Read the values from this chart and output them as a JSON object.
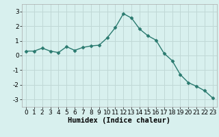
{
  "x": [
    0,
    1,
    2,
    3,
    4,
    5,
    6,
    7,
    8,
    9,
    10,
    11,
    12,
    13,
    14,
    15,
    16,
    17,
    18,
    19,
    20,
    21,
    22,
    23
  ],
  "y": [
    0.3,
    0.3,
    0.5,
    0.3,
    0.2,
    0.6,
    0.35,
    0.55,
    0.65,
    0.7,
    1.2,
    1.9,
    2.85,
    2.55,
    1.8,
    1.35,
    1.05,
    0.15,
    -0.35,
    -1.3,
    -1.85,
    -2.1,
    -2.4,
    -2.9
  ],
  "line_color": "#2a7a6f",
  "marker": "D",
  "marker_size": 2.5,
  "bg_color": "#d8f0ee",
  "grid_color": "#c0d8d6",
  "xlabel": "Humidex (Indice chaleur)",
  "xlim": [
    -0.5,
    23.5
  ],
  "ylim": [
    -3.5,
    3.5
  ],
  "yticks": [
    -3,
    -2,
    -1,
    0,
    1,
    2,
    3
  ],
  "xticks": [
    0,
    1,
    2,
    3,
    4,
    5,
    6,
    7,
    8,
    9,
    10,
    11,
    12,
    13,
    14,
    15,
    16,
    17,
    18,
    19,
    20,
    21,
    22,
    23
  ],
  "tick_fontsize": 6.5,
  "xlabel_fontsize": 7.5,
  "spine_color": "#aaaaaa",
  "linewidth": 1.0
}
